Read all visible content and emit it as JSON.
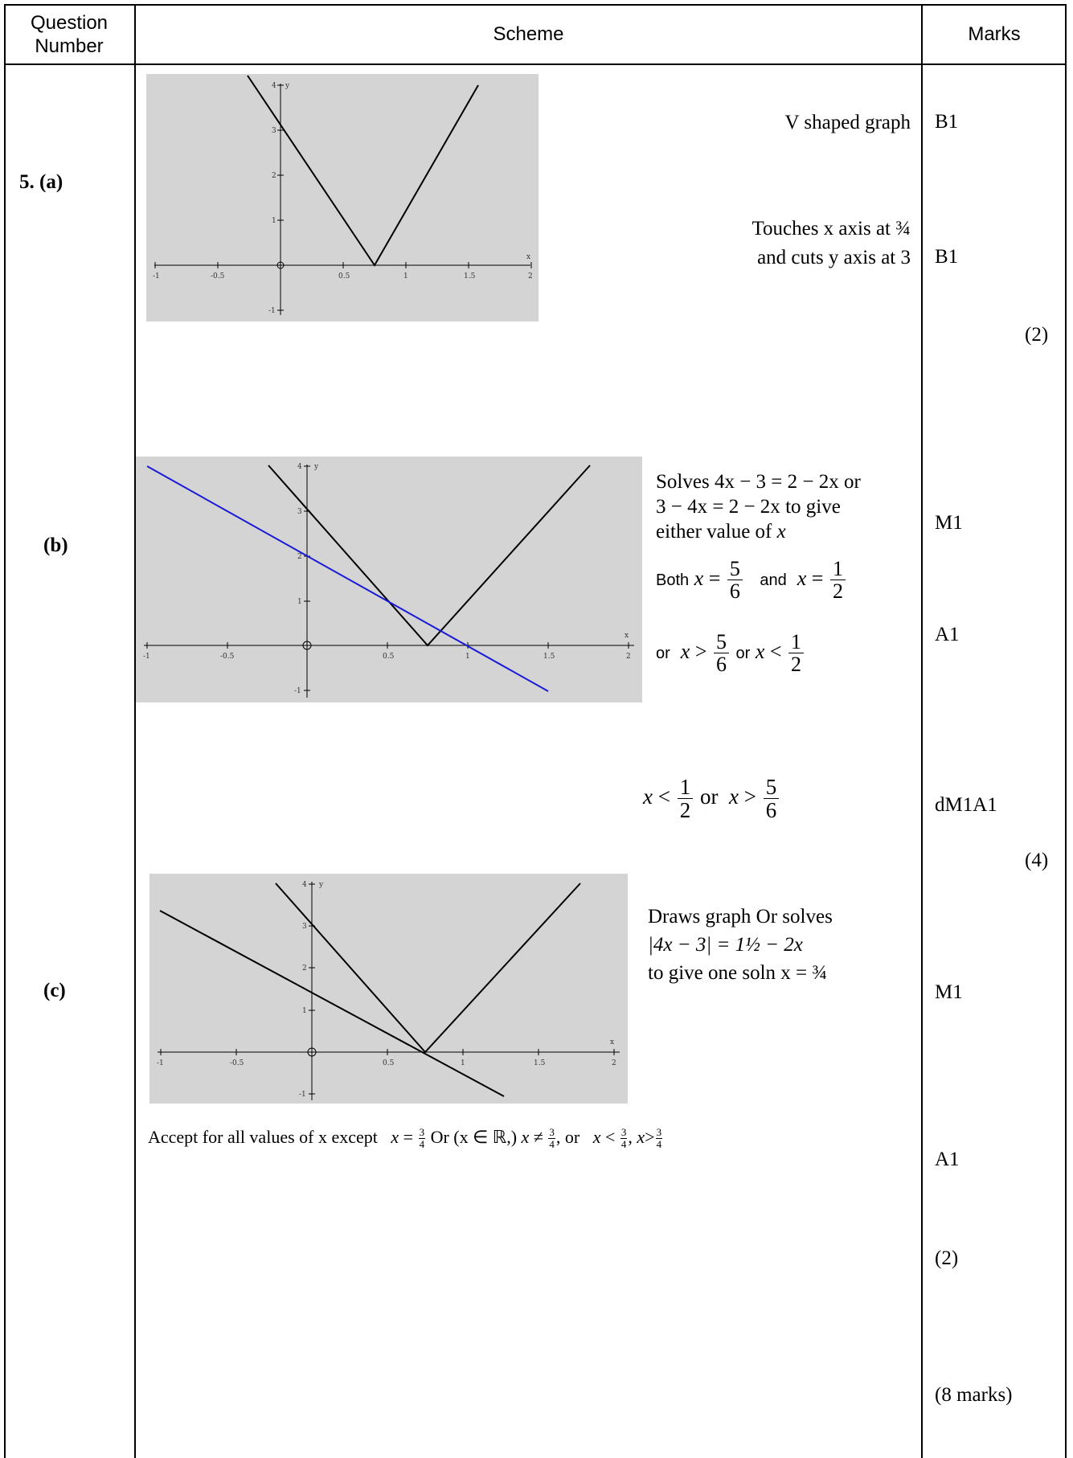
{
  "header": {
    "question_number": "Question Number",
    "scheme": "Scheme",
    "marks": "Marks"
  },
  "parts": {
    "a": {
      "label": "5. (a)",
      "note1": "V shaped graph",
      "mark1": "B1",
      "note2_line1": "Touches x axis at ¾",
      "note2_line2": "and cuts y axis at 3",
      "mark2": "B1",
      "total": "(2)"
    },
    "b": {
      "label": "(b)",
      "solves_word": "Solves",
      "eq1": "4x − 3 = 2 − 2x",
      "or_word": "or",
      "eq2": "3 − 4x = 2 − 2x",
      "to_give": "to give",
      "either_value": "either value of",
      "x_var": "x",
      "both": "Both",
      "and": "and",
      "or_lbl": "or",
      "or_between": "or",
      "frac_num_5": "5",
      "frac_den_6": "6",
      "frac_num_1": "1",
      "frac_den_2": "2",
      "mark_m1": "M1",
      "mark_a1": "A1",
      "final_or": "or",
      "mark_final": "dM1A1",
      "total": "(4)"
    },
    "c": {
      "label": "(c)",
      "line1": "Draws graph Or solves",
      "eq": "|4x − 3| = 1½ − 2x",
      "line3": "to give one soln x = ¾",
      "mark_m1": "M1",
      "accept_text": "Accept for all values of x except",
      "accept_or": "Or",
      "accept_set": "(x ∈ ℝ,)",
      "accept_or2": "or",
      "frac_num": "3",
      "frac_den": "4",
      "mark_a1": "A1",
      "total": "(2)",
      "question_total": "(8 marks)"
    }
  },
  "graphs": {
    "a": {
      "x_ticks": [
        "-1",
        "-0.5",
        "0.5",
        "1",
        "1.5",
        "2"
      ],
      "y_ticks": [
        "4",
        "3",
        "2",
        "1",
        "-1"
      ],
      "y_label": "y",
      "x_label": "x",
      "origin_label": "0",
      "colors": {
        "background": "#d4d4d4",
        "v_line": "#000000"
      }
    },
    "b": {
      "x_ticks": [
        "-1",
        "-0.5",
        "0.5",
        "1",
        "1.5",
        "2"
      ],
      "y_ticks": [
        "4",
        "3",
        "2",
        "1",
        "-1"
      ],
      "y_label": "y",
      "x_label": "x",
      "origin_label": "0",
      "colors": {
        "background": "#d4d4d4",
        "v_line": "#000000",
        "straight_line": "#1a1ad6"
      }
    },
    "c": {
      "x_ticks": [
        "-1",
        "-0.5",
        "0.5",
        "1",
        "1.5",
        "2"
      ],
      "y_ticks": [
        "4",
        "3",
        "2",
        "1",
        "-1"
      ],
      "y_label": "y",
      "x_label": "x",
      "origin_label": "0",
      "colors": {
        "background": "#d4d4d4",
        "v_line": "#000000",
        "straight_line": "#000000"
      }
    }
  }
}
